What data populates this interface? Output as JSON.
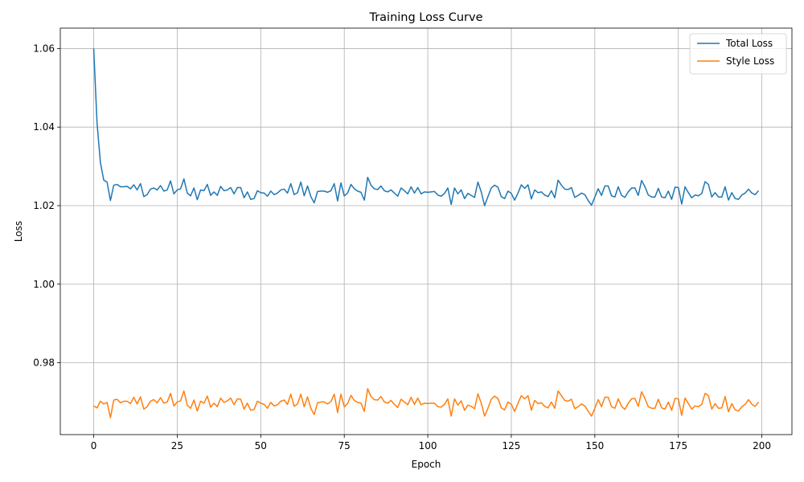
{
  "chart_data": {
    "type": "line",
    "title": "Training Loss Curve",
    "xlabel": "Epoch",
    "ylabel": "Loss",
    "xlim": [
      -10,
      209
    ],
    "ylim": [
      0.9617,
      1.0652
    ],
    "xticks": [
      0,
      25,
      50,
      75,
      100,
      125,
      150,
      175,
      200
    ],
    "yticks": [
      0.98,
      1.0,
      1.02,
      1.04,
      1.06
    ],
    "ytick_labels": [
      "0.98",
      "1.00",
      "1.02",
      "1.04",
      "1.06"
    ],
    "grid": true,
    "legend": "top-right",
    "colors": {
      "total": "#1f77b4",
      "style": "#ff7f0e"
    },
    "series": [
      {
        "name": "Total Loss",
        "values": [
          1.06,
          1.041,
          1.031,
          1.0265,
          1.026,
          1.0213,
          1.0252,
          1.0254,
          1.0248,
          1.0248,
          1.0249,
          1.0243,
          1.0253,
          1.024,
          1.0256,
          1.0223,
          1.0228,
          1.0242,
          1.0245,
          1.024,
          1.0251,
          1.0237,
          1.024,
          1.0263,
          1.023,
          1.024,
          1.0243,
          1.0268,
          1.0232,
          1.0225,
          1.0245,
          1.0215,
          1.024,
          1.0238,
          1.0254,
          1.0226,
          1.0235,
          1.0226,
          1.0249,
          1.0238,
          1.024,
          1.0246,
          1.023,
          1.0246,
          1.0246,
          1.022,
          1.0235,
          1.0216,
          1.0218,
          1.0238,
          1.0233,
          1.0232,
          1.0224,
          1.0237,
          1.0228,
          1.0232,
          1.024,
          1.0242,
          1.0232,
          1.0256,
          1.0228,
          1.0233,
          1.026,
          1.0225,
          1.025,
          1.0223,
          1.0207,
          1.0236,
          1.0237,
          1.0237,
          1.0234,
          1.0238,
          1.0256,
          1.0212,
          1.0258,
          1.0225,
          1.0232,
          1.0254,
          1.0243,
          1.0237,
          1.0234,
          1.0214,
          1.0272,
          1.0252,
          1.0243,
          1.0241,
          1.025,
          1.0238,
          1.0235,
          1.024,
          1.0232,
          1.0224,
          1.0245,
          1.0238,
          1.023,
          1.0248,
          1.0232,
          1.0246,
          1.023,
          1.0235,
          1.0234,
          1.0235,
          1.0236,
          1.0227,
          1.0224,
          1.0231,
          1.0245,
          1.0203,
          1.0245,
          1.023,
          1.024,
          1.0218,
          1.0231,
          1.0226,
          1.0221,
          1.026,
          1.0235,
          1.02,
          1.0223,
          1.0245,
          1.0252,
          1.0247,
          1.0223,
          1.0218,
          1.0237,
          1.0231,
          1.0214,
          1.0232,
          1.0253,
          1.0244,
          1.0253,
          1.0217,
          1.024,
          1.0233,
          1.0235,
          1.0227,
          1.0223,
          1.0238,
          1.022,
          1.0265,
          1.0252,
          1.0242,
          1.0241,
          1.0246,
          1.0221,
          1.0226,
          1.0232,
          1.0228,
          1.0213,
          1.0201,
          1.0222,
          1.0243,
          1.0226,
          1.025,
          1.025,
          1.0225,
          1.0222,
          1.0248,
          1.0226,
          1.0221,
          1.0235,
          1.0245,
          1.0245,
          1.0226,
          1.0264,
          1.0248,
          1.0227,
          1.0222,
          1.0222,
          1.0244,
          1.0222,
          1.022,
          1.0237,
          1.0216,
          1.0247,
          1.0246,
          1.0204,
          1.0248,
          1.0233,
          1.022,
          1.0227,
          1.0225,
          1.0231,
          1.0261,
          1.0254,
          1.0222,
          1.0233,
          1.0222,
          1.0222,
          1.0248,
          1.0214,
          1.0233,
          1.0218,
          1.0216,
          1.0227,
          1.0232,
          1.0242,
          1.0232,
          1.0228,
          1.0238
        ]
      },
      {
        "name": "Style Loss",
        "values": [
          0.969,
          0.9685,
          0.9702,
          0.9695,
          0.9699,
          0.966,
          0.9705,
          0.9707,
          0.9698,
          0.9702,
          0.9702,
          0.9696,
          0.9712,
          0.9695,
          0.9713,
          0.9682,
          0.9688,
          0.9702,
          0.9706,
          0.9698,
          0.9711,
          0.9697,
          0.97,
          0.9722,
          0.969,
          0.97,
          0.9703,
          0.9728,
          0.9692,
          0.9684,
          0.9705,
          0.9677,
          0.9702,
          0.9697,
          0.9715,
          0.9687,
          0.9697,
          0.9688,
          0.971,
          0.9699,
          0.9703,
          0.971,
          0.9693,
          0.9708,
          0.9707,
          0.9682,
          0.9697,
          0.9679,
          0.9681,
          0.9702,
          0.9697,
          0.9694,
          0.9684,
          0.9699,
          0.969,
          0.9693,
          0.9702,
          0.9705,
          0.9694,
          0.972,
          0.9689,
          0.9695,
          0.972,
          0.9688,
          0.9713,
          0.9684,
          0.9668,
          0.9698,
          0.97,
          0.97,
          0.9695,
          0.9701,
          0.972,
          0.9673,
          0.972,
          0.9688,
          0.9696,
          0.9717,
          0.9704,
          0.9699,
          0.9697,
          0.9676,
          0.9734,
          0.9714,
          0.9706,
          0.9705,
          0.9714,
          0.97,
          0.9697,
          0.9704,
          0.9694,
          0.9686,
          0.9707,
          0.97,
          0.9693,
          0.9712,
          0.9694,
          0.971,
          0.9693,
          0.9697,
          0.9696,
          0.9697,
          0.9697,
          0.9688,
          0.9687,
          0.9694,
          0.9708,
          0.9664,
          0.9708,
          0.9692,
          0.9703,
          0.9679,
          0.9692,
          0.9689,
          0.9683,
          0.9721,
          0.9697,
          0.9664,
          0.9684,
          0.9707,
          0.9715,
          0.9709,
          0.9685,
          0.968,
          0.97,
          0.9694,
          0.9676,
          0.9697,
          0.9716,
          0.9708,
          0.9716,
          0.9679,
          0.9704,
          0.9696,
          0.9698,
          0.9689,
          0.9685,
          0.97,
          0.9684,
          0.9728,
          0.9716,
          0.9704,
          0.9702,
          0.9707,
          0.9683,
          0.9688,
          0.9695,
          0.969,
          0.9677,
          0.9664,
          0.9684,
          0.9706,
          0.9688,
          0.9712,
          0.9712,
          0.9688,
          0.9684,
          0.9708,
          0.9689,
          0.9681,
          0.9697,
          0.9708,
          0.9709,
          0.9689,
          0.9726,
          0.9709,
          0.9688,
          0.9684,
          0.9684,
          0.9707,
          0.9685,
          0.9682,
          0.97,
          0.9679,
          0.9709,
          0.9708,
          0.9666,
          0.971,
          0.9696,
          0.9682,
          0.969,
          0.9688,
          0.9694,
          0.9722,
          0.9716,
          0.9682,
          0.9696,
          0.9684,
          0.9685,
          0.9714,
          0.9675,
          0.9696,
          0.968,
          0.9677,
          0.9688,
          0.9694,
          0.9706,
          0.9694,
          0.9689,
          0.97
        ]
      }
    ]
  }
}
